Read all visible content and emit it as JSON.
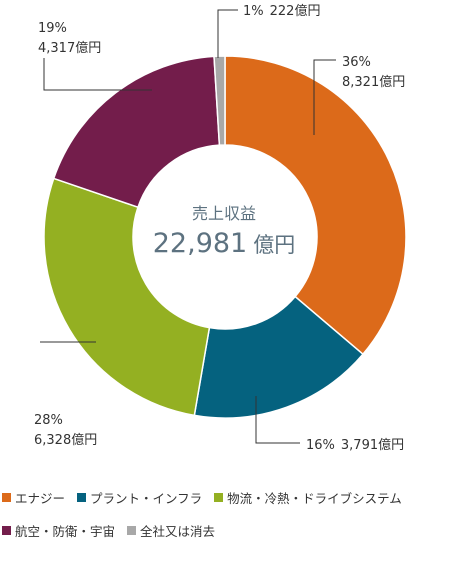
{
  "chart_data": {
    "type": "pie",
    "donut": true,
    "center_title": "売上収益",
    "center_value": "22,981",
    "center_unit": "億円",
    "slices": [
      {
        "name": "エナジー",
        "percent_label": "36%",
        "value": 8321,
        "value_label": "8,321億円",
        "color": "#dc6a1a"
      },
      {
        "name": "プラント・インフラ",
        "percent_label": "16%",
        "value": 3791,
        "value_label": "3,791億円",
        "color": "#05627f"
      },
      {
        "name": "物流・冷熱・ドライブシステム",
        "percent_label": "28%",
        "value": 6328,
        "value_label": "6,328億円",
        "color": "#94b022"
      },
      {
        "name": "航空・防衛・宇宙",
        "percent_label": "19%",
        "value": 4317,
        "value_label": "4,317億円",
        "color": "#731d4b"
      },
      {
        "name": "全社又は消去",
        "percent_label": "1%",
        "value": 222,
        "value_label": "222億円",
        "color": "#a8a8a8"
      }
    ],
    "legend_position": "bottom"
  }
}
